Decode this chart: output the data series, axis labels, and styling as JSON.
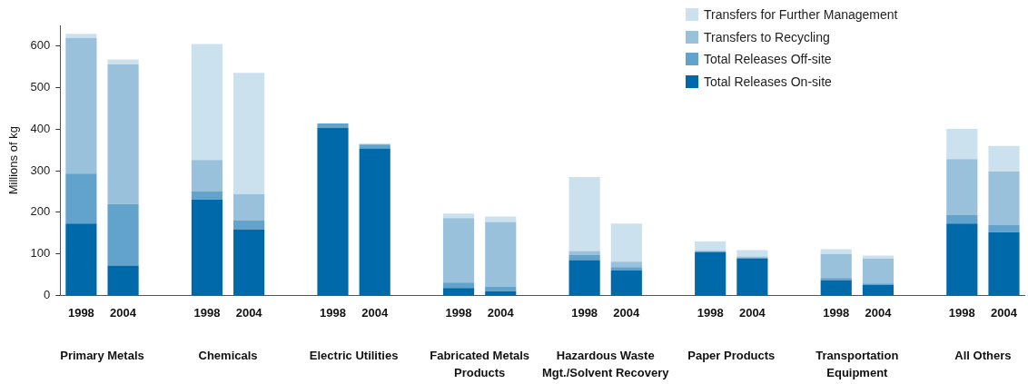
{
  "chart_data": {
    "type": "bar",
    "stacked": true,
    "ylabel": "Millions of kg",
    "categories": [
      "1998",
      "2004",
      null,
      "1998",
      "2004",
      null,
      "1998",
      "2004",
      null,
      "1998",
      "2004",
      null,
      "1998",
      "2004",
      null,
      "1998",
      "2004",
      null,
      "1998",
      "2004",
      null,
      "1998",
      "2004"
    ],
    "series": [
      {
        "name": "Total Releases On-site",
        "color": "#0069aa",
        "values": [
          173,
          72,
          null,
          231,
          158,
          null,
          403,
          354,
          null,
          18,
          10,
          null,
          85,
          60,
          null,
          104,
          89,
          null,
          36,
          25,
          null,
          173,
          152
        ]
      },
      {
        "name": "Total Releases Off-site",
        "color": "#62a3cb",
        "values": [
          120,
          148,
          null,
          20,
          22,
          null,
          11,
          9,
          null,
          13,
          11,
          null,
          13,
          8,
          null,
          3,
          2,
          null,
          6,
          4,
          null,
          20,
          17
        ]
      },
      {
        "name": "Transfers to Recycling",
        "color": "#9ac1db",
        "values": [
          327,
          336,
          null,
          75,
          64,
          null,
          0,
          2,
          null,
          155,
          156,
          null,
          9,
          13,
          null,
          null,
          3,
          null,
          58,
          60,
          null,
          135,
          129
        ]
      },
      {
        "name": "Transfers for Further Management",
        "color": "#cce1ee",
        "values": [
          10,
          12,
          null,
          279,
          292,
          null,
          0,
          0,
          null,
          11,
          13,
          null,
          178,
          92,
          null,
          23,
          15,
          null,
          11,
          7,
          null,
          73,
          62
        ]
      }
    ],
    "annotations": [
      "Primary Metals",
      "Chemicals",
      "Electric Utilities",
      "Fabricated Metals Products",
      "Hazardous Waste Mgt./Solvent Recovery",
      "Paper Products",
      "Transportation Equipment",
      "All Others"
    ],
    "ylim": [
      0,
      650
    ],
    "yticks": [
      0,
      100,
      200,
      300,
      400,
      500,
      600
    ],
    "grid": false,
    "legend": "top right"
  }
}
